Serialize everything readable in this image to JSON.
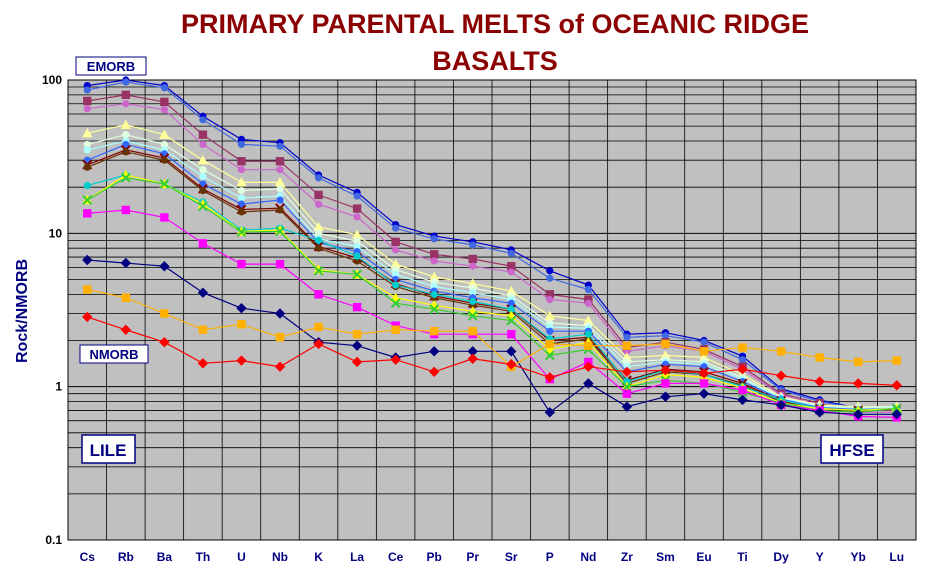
{
  "chart_data": {
    "type": "line",
    "title_lines": [
      "PRIMARY PARENTAL MELTS  of  OCEANIC RIDGE",
      "BASALTS"
    ],
    "ylabel": "Rock/NMORB",
    "xlabel": "",
    "yscale": "log",
    "ylim": [
      0.1,
      100
    ],
    "yticks": [
      "0.1",
      "1",
      "10",
      "100"
    ],
    "grid": true,
    "plot_background": "#c0c0c0",
    "categories": [
      "Cs",
      "Rb",
      "Ba",
      "Th",
      "U",
      "Nb",
      "K",
      "La",
      "Ce",
      "Pb",
      "Pr",
      "Sr",
      "P",
      "Nd",
      "Zr",
      "Sm",
      "Eu",
      "Ti",
      "Dy",
      "Y",
      "Yb",
      "Lu"
    ],
    "annotations": {
      "emorb": "EMORB",
      "nmorb": "NMORB",
      "lile": "LILE",
      "hfse": "HFSE"
    },
    "series": [
      {
        "color": "#0000cd",
        "marker": "circle",
        "values": [
          92,
          100,
          92,
          58,
          41,
          39,
          24,
          18.5,
          11.4,
          9.6,
          8.8,
          7.8,
          5.7,
          4.6,
          2.2,
          2.25,
          2.0,
          1.58,
          0.97,
          0.82,
          0.72,
          0.72
        ]
      },
      {
        "color": "#4169e1",
        "marker": "circle",
        "values": [
          86,
          97,
          89,
          55,
          38,
          37,
          23,
          17.5,
          10.8,
          9.2,
          8.4,
          7.4,
          5.1,
          4.3,
          2.1,
          2.15,
          1.95,
          1.5,
          0.95,
          0.8,
          0.72,
          0.72
        ]
      },
      {
        "color": "#993366",
        "marker": "square",
        "values": [
          73,
          80,
          72,
          44,
          29.5,
          29.5,
          17.8,
          14.5,
          8.8,
          7.3,
          6.8,
          6.1,
          4.0,
          3.7,
          1.8,
          1.95,
          1.75,
          1.35,
          0.9,
          0.78,
          0.7,
          0.7
        ]
      },
      {
        "color": "#cc66cc",
        "marker": "circle",
        "values": [
          65,
          70,
          64,
          38,
          26,
          26,
          15.5,
          12.8,
          7.8,
          6.6,
          6.1,
          5.6,
          3.7,
          3.5,
          1.7,
          1.85,
          1.7,
          1.3,
          0.88,
          0.76,
          0.68,
          0.68
        ]
      },
      {
        "color": "#ffff99",
        "marker": "triangle",
        "values": [
          45,
          51,
          44,
          30,
          21.5,
          21.5,
          11,
          9.8,
          6.3,
          5.2,
          4.7,
          4.2,
          2.9,
          2.7,
          1.55,
          1.6,
          1.55,
          1.2,
          0.86,
          0.76,
          0.74,
          0.74
        ]
      },
      {
        "color": "#e0ffe0",
        "marker": "circle",
        "values": [
          38,
          44,
          38,
          26,
          19,
          19.5,
          10,
          8.9,
          5.8,
          4.8,
          4.4,
          3.9,
          2.6,
          2.5,
          1.45,
          1.5,
          1.45,
          1.15,
          0.85,
          0.75,
          0.73,
          0.74
        ]
      },
      {
        "color": "#aaffff",
        "marker": "circle",
        "values": [
          35,
          40,
          35,
          23.5,
          17,
          17.5,
          9.2,
          8.2,
          5.4,
          4.5,
          4.1,
          3.7,
          2.45,
          2.4,
          1.35,
          1.45,
          1.4,
          1.12,
          0.84,
          0.74,
          0.72,
          0.73
        ]
      },
      {
        "color": "#3366ff",
        "marker": "circle",
        "values": [
          30,
          38,
          33,
          21,
          15.5,
          16.5,
          8.7,
          7.6,
          5.0,
          4.2,
          3.8,
          3.5,
          2.3,
          2.3,
          1.25,
          1.4,
          1.35,
          1.08,
          0.83,
          0.73,
          0.71,
          0.72
        ]
      },
      {
        "color": "#800000",
        "marker": "x",
        "values": [
          28,
          35,
          31,
          19.5,
          14.3,
          14.6,
          8.2,
          6.9,
          4.7,
          3.9,
          3.5,
          3.2,
          2.0,
          2.1,
          1.1,
          1.3,
          1.25,
          1.05,
          0.81,
          0.72,
          0.7,
          0.72
        ]
      },
      {
        "color": "#663300",
        "marker": "circle",
        "values": [
          27,
          34,
          30,
          19,
          13.8,
          14.2,
          8.0,
          6.6,
          4.5,
          3.8,
          3.4,
          3.1,
          1.9,
          2.05,
          1.05,
          1.25,
          1.2,
          1.02,
          0.8,
          0.72,
          0.69,
          0.72
        ]
      },
      {
        "color": "#00cccc",
        "marker": "circle",
        "values": [
          20.5,
          24,
          21,
          16,
          10.5,
          10.8,
          9.0,
          7.1,
          4.6,
          4.0,
          3.6,
          3.2,
          2.05,
          2.2,
          1.08,
          1.28,
          1.2,
          1.0,
          0.82,
          0.72,
          0.7,
          0.72
        ]
      },
      {
        "color": "#ffff00",
        "marker": "triangle",
        "values": [
          16.5,
          24,
          21,
          15.5,
          10.3,
          10.5,
          5.8,
          5.4,
          3.8,
          3.4,
          3.1,
          2.9,
          1.75,
          1.95,
          1.0,
          1.2,
          1.15,
          0.98,
          0.78,
          0.72,
          0.7,
          0.72
        ]
      },
      {
        "color": "#33cc33",
        "marker": "x",
        "values": [
          16.5,
          23,
          21,
          15,
          10.2,
          10.3,
          5.7,
          5.4,
          3.5,
          3.2,
          2.9,
          2.7,
          1.6,
          1.75,
          1.0,
          1.1,
          1.05,
          0.92,
          0.78,
          0.7,
          0.68,
          0.72
        ]
      },
      {
        "color": "#ff00ff",
        "marker": "square",
        "values": [
          13.5,
          14.2,
          12.7,
          8.6,
          6.3,
          6.3,
          4.0,
          3.3,
          2.5,
          2.2,
          2.2,
          2.2,
          1.12,
          1.45,
          0.9,
          1.05,
          1.05,
          0.95,
          0.76,
          0.7,
          0.64,
          0.63
        ]
      },
      {
        "color": "#000080",
        "marker": "diamond",
        "values": [
          6.7,
          6.4,
          6.1,
          4.1,
          3.25,
          3.0,
          1.95,
          1.85,
          1.55,
          1.7,
          1.7,
          1.7,
          0.68,
          1.05,
          0.74,
          0.86,
          0.9,
          0.82,
          0.76,
          0.68,
          0.66,
          0.66
        ]
      },
      {
        "color": "#ffb000",
        "marker": "square",
        "values": [
          4.3,
          3.8,
          3.0,
          2.35,
          2.55,
          2.1,
          2.45,
          2.2,
          2.35,
          2.3,
          2.3,
          1.35,
          1.9,
          1.85,
          1.85,
          1.9,
          1.7,
          1.8,
          1.7,
          1.55,
          1.45,
          1.48
        ]
      },
      {
        "color": "#ff0000",
        "marker": "diamond",
        "values": [
          2.85,
          2.35,
          1.95,
          1.42,
          1.48,
          1.35,
          1.9,
          1.45,
          1.5,
          1.25,
          1.52,
          1.4,
          1.15,
          1.35,
          1.25,
          1.28,
          1.22,
          1.3,
          1.18,
          1.08,
          1.05,
          1.02
        ]
      }
    ]
  }
}
